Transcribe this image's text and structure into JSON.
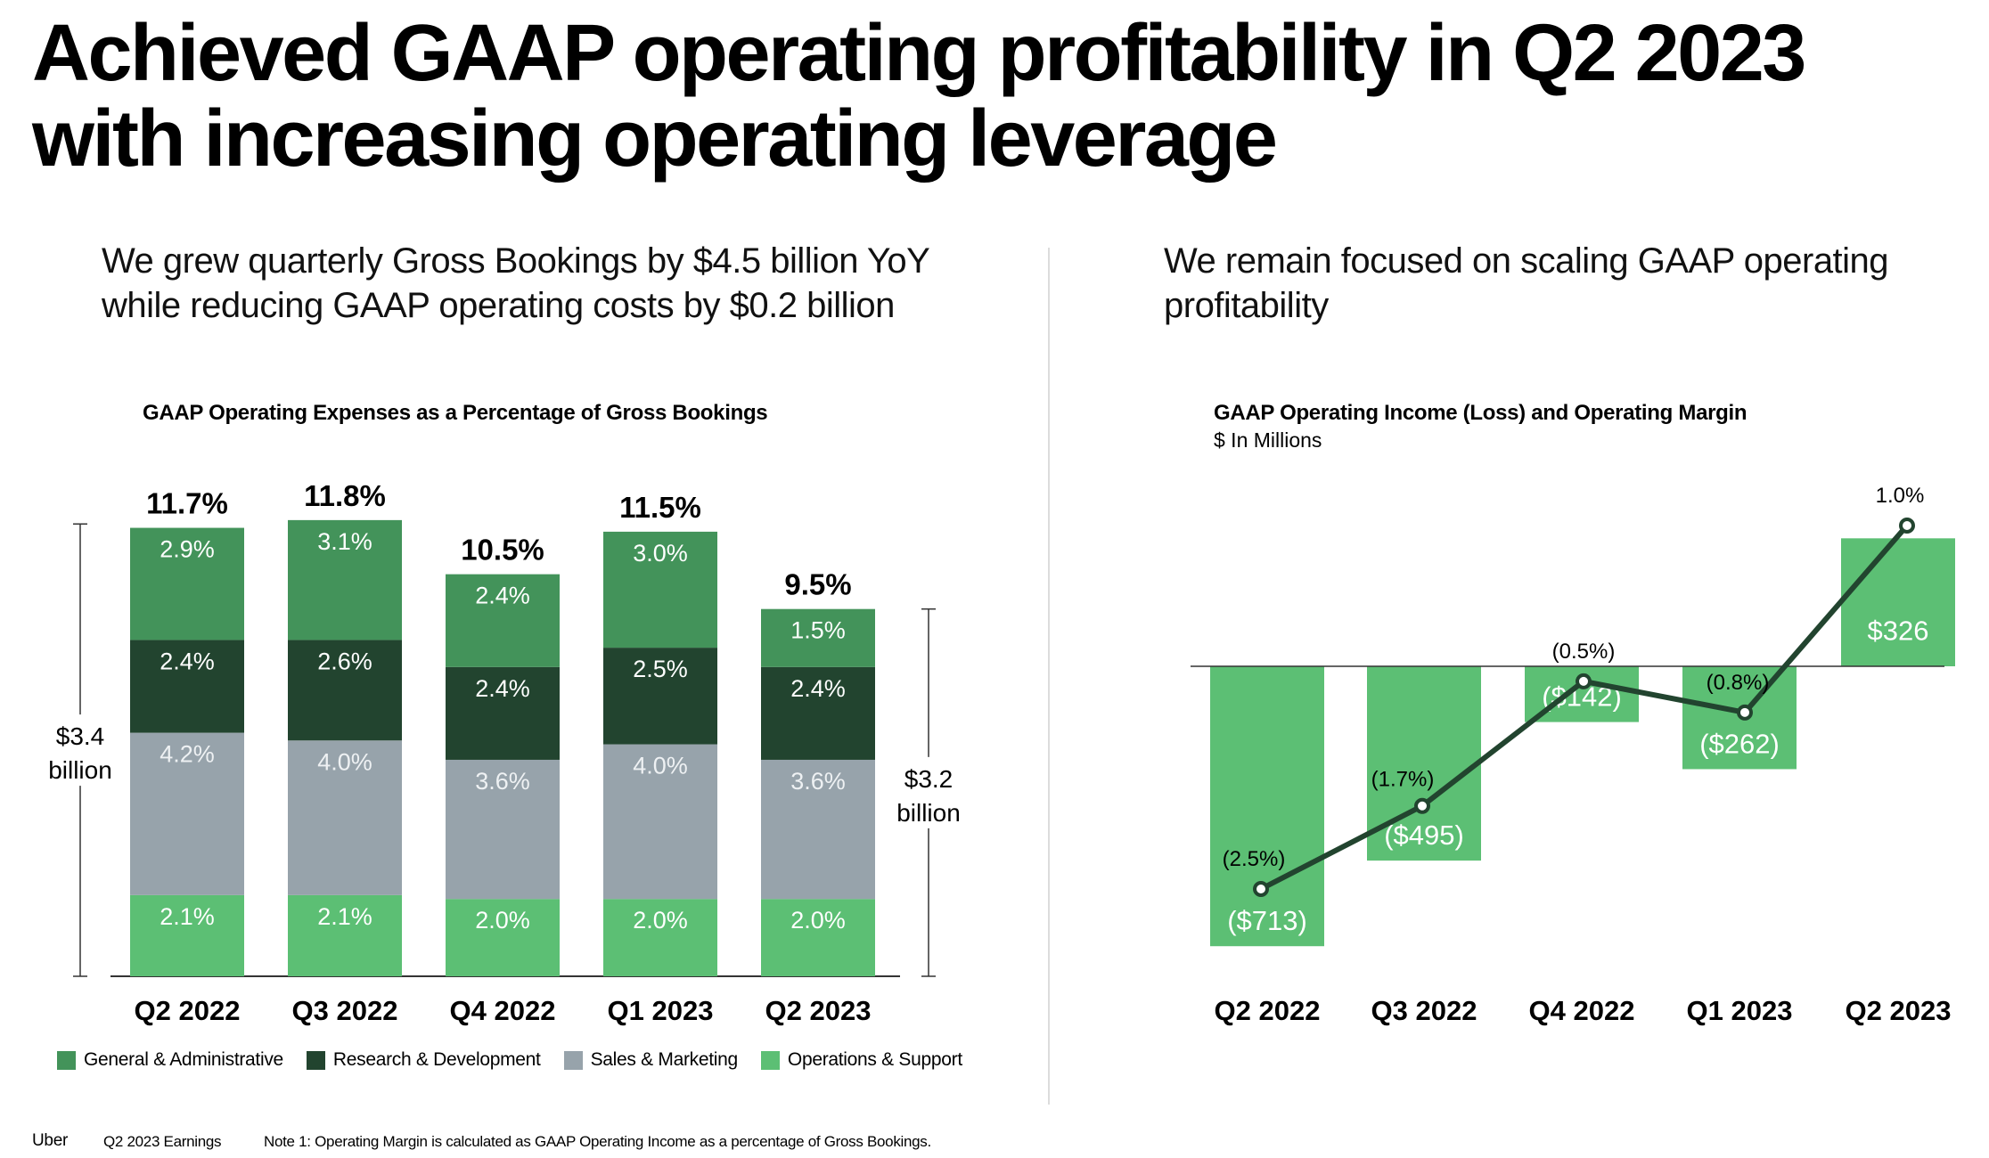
{
  "title": "Achieved GAAP operating profitability in Q2 2023 with increasing operating leverage",
  "left_panel": {
    "subtitle": "We grew quarterly Gross Bookings by $4.5 billion YoY while reducing GAAP operating costs by $0.2 billion"
  },
  "right_panel": {
    "subtitle": "We remain focused on scaling GAAP operating profitability"
  },
  "colors": {
    "general_admin": "#43935A",
    "research_dev": "#22442F",
    "sales_marketing": "#97A3AB",
    "ops_support": "#5CBF74",
    "income_bar": "#5CBF74",
    "margin_line": "#22442F"
  },
  "chart_data": [
    {
      "type": "bar",
      "stacked": true,
      "title": "GAAP Operating Expenses as a Percentage of Gross Bookings",
      "categories": [
        "Q2 2022",
        "Q3 2022",
        "Q4 2022",
        "Q1 2023",
        "Q2 2023"
      ],
      "series": [
        {
          "name": "Operations & Support",
          "values": [
            2.1,
            2.1,
            2.0,
            2.0,
            2.0
          ],
          "labels": [
            "2.1%",
            "2.1%",
            "2.0%",
            "2.0%",
            "2.0%"
          ],
          "color": "#5CBF74"
        },
        {
          "name": "Sales & Marketing",
          "values": [
            4.2,
            4.0,
            3.6,
            4.0,
            3.6
          ],
          "labels": [
            "4.2%",
            "4.0%",
            "3.6%",
            "4.0%",
            "3.6%"
          ],
          "color": "#97A3AB"
        },
        {
          "name": "Research & Development",
          "values": [
            2.4,
            2.6,
            2.4,
            2.5,
            2.4
          ],
          "labels": [
            "2.4%",
            "2.6%",
            "2.4%",
            "2.5%",
            "2.4%"
          ],
          "color": "#22442F"
        },
        {
          "name": "General & Administrative",
          "values": [
            2.9,
            3.1,
            2.4,
            3.0,
            1.5
          ],
          "labels": [
            "2.9%",
            "3.1%",
            "2.4%",
            "3.0%",
            "1.5%"
          ],
          "color": "#43935A"
        }
      ],
      "totals": [
        11.7,
        11.8,
        10.5,
        11.5,
        9.5
      ],
      "total_labels": [
        "11.7%",
        "11.8%",
        "10.5%",
        "11.5%",
        "9.5%"
      ],
      "legend": [
        "General & Administrative",
        "Research & Development",
        "Sales & Marketing",
        "Operations & Support"
      ],
      "legend_position": "bottom",
      "annotations": [
        {
          "text_line1": "$3.4",
          "text_line2": "billion",
          "refers_to": "Q2 2022"
        },
        {
          "text_line1": "$3.2",
          "text_line2": "billion",
          "refers_to": "Q2 2023"
        }
      ]
    },
    {
      "type": "bar",
      "title": "GAAP Operating Income (Loss) and Operating Margin",
      "subtitle": "$ In Millions",
      "categories": [
        "Q2 2022",
        "Q3 2022",
        "Q4 2022",
        "Q1 2023",
        "Q2 2023"
      ],
      "series": [
        {
          "name": "GAAP Operating Income (Loss)",
          "type": "bar",
          "values": [
            -713,
            -495,
            -142,
            -262,
            326
          ],
          "labels": [
            "($713)",
            "($495)",
            "($142)",
            "($262)",
            "$326"
          ],
          "color": "#5CBF74"
        },
        {
          "name": "Operating Margin",
          "type": "line",
          "values": [
            -2.5,
            -1.7,
            -0.5,
            -0.8,
            1.0
          ],
          "labels": [
            "(2.5%)",
            "(1.7%)",
            "(0.5%)",
            "(0.8%)",
            "1.0%"
          ],
          "color": "#22442F"
        }
      ]
    }
  ],
  "footer": {
    "brand": "Uber",
    "event": "Q2 2023 Earnings",
    "note": "Note 1: Operating Margin is calculated as GAAP Operating Income as a percentage of Gross Bookings."
  }
}
